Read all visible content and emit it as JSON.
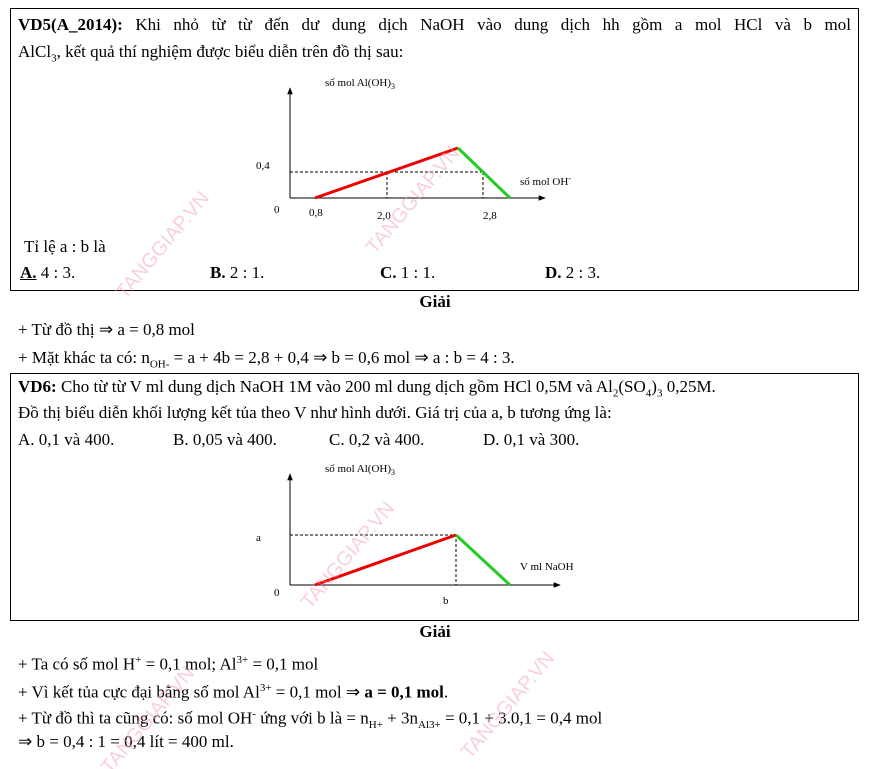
{
  "problem1": {
    "label": "VD5(A_2014):",
    "text": [
      " Khi nhỏ từ từ đến dư dung dịch NaOH vào dung dịch hh gồm a mol HCl và b mol",
      "AlCl",
      "3",
      ", kết quả thí nghiệm được biểu diễn trên đồ thị sau:"
    ],
    "graph": {
      "y_label": [
        "số mol Al(OH)",
        "3"
      ],
      "x_label": [
        "số mol OH",
        "-"
      ],
      "y_tick": "0,4",
      "origin": "0",
      "x_ticks": [
        "0,8",
        "2,0",
        "2,8"
      ]
    },
    "question": "Tỉ lệ a : b là",
    "options": [
      {
        "letter": "A.",
        "text": " 4 : 3."
      },
      {
        "letter": "B.",
        "text": " 2 : 1."
      },
      {
        "letter": "C.",
        "text": " 1 : 1."
      },
      {
        "letter": "D.",
        "text": " 2 : 3."
      }
    ]
  },
  "solution1": {
    "heading": "Giải",
    "lines": [
      [
        "+ Từ đồ thị ⇒ a = 0,8 mol"
      ],
      [
        "+ Mặt khác ta có: n",
        "OH-",
        " = a + 4b = 2,8 + 0,4 ⇒ b = 0,6 mol ⇒ a : b = 4 : 3."
      ]
    ]
  },
  "problem2": {
    "label": "VD6:",
    "text": [
      " Cho từ từ V ml dung dịch NaOH 1M vào 200 ml dung dịch gồm HCl 0,5M và Al",
      "2",
      "(SO",
      "4",
      ")",
      "3",
      " 0,25M.",
      "Đồ thị biểu diễn khối lượng kết tủa theo V như hình dưới. Giá trị của a, b tương ứng là:"
    ],
    "options": [
      "A. 0,1 và 400.",
      "B. 0,05 và 400.",
      "C. 0,2 và 400.",
      "D. 0,1 và 300."
    ],
    "graph": {
      "y_label": [
        "số mol Al(OH)",
        "3"
      ],
      "x_label": "V ml NaOH",
      "y_tick": "a",
      "origin": "0",
      "x_tick": "b"
    }
  },
  "solution2": {
    "heading": "Giải",
    "lines": [
      [
        "+ Ta có số mol H",
        "+",
        " = 0,1 mol; Al",
        "3+",
        " = 0,1 mol"
      ],
      [
        "+ Vì kết tủa cực đại bằng số mol Al",
        "3+",
        " = 0,1 mol ⇒ ",
        "a = 0,1 mol",
        "."
      ],
      [
        "+ Từ đồ thì ta cũng có: số mol OH",
        "-",
        " ứng với b là = n",
        "H+",
        " + 3n",
        "Al3+",
        " = 0,1 + 3.0,1 = 0,4 mol"
      ],
      [
        "⇒ b = 0,4 : 1 = 0,4 lít = 400 ml."
      ]
    ]
  },
  "watermark": "TANGGIAP.VN"
}
